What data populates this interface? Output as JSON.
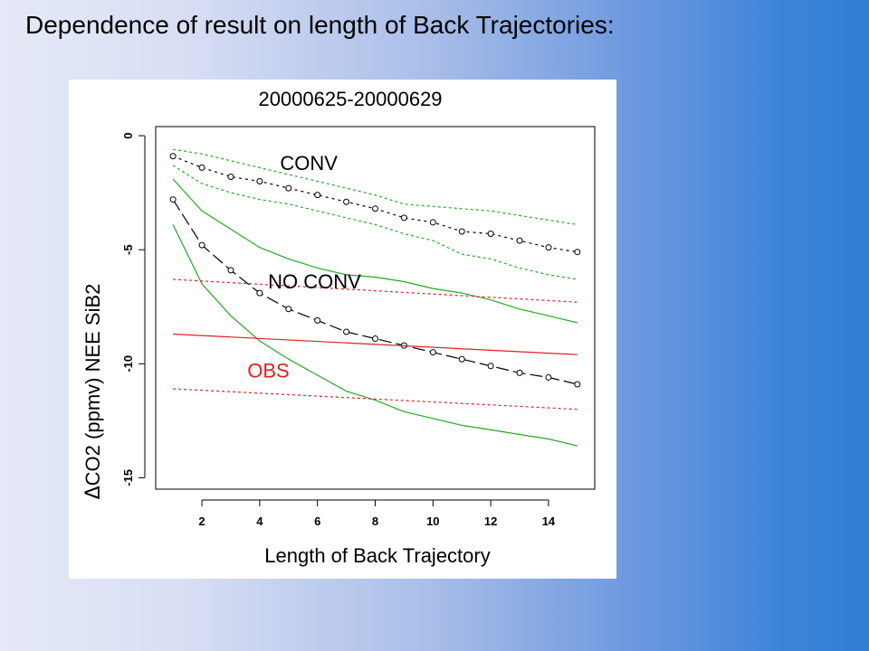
{
  "slide": {
    "title": "Dependence of result on length of Back Trajectories:"
  },
  "colors": {
    "conv": "#000000",
    "band": "#22aa22",
    "obs": "#dd2222"
  },
  "chart_data": {
    "type": "line",
    "title": "20000625-20000629",
    "xlabel": "Length of Back Trajectory",
    "ylabel_delta": "Δ",
    "ylabel": "CO2 (ppmv) NEE SiB2",
    "xlim": [
      0.4,
      15.6
    ],
    "ylim": [
      -15.5,
      0.4
    ],
    "x_ticks": [
      2,
      4,
      6,
      8,
      10,
      12,
      14
    ],
    "y_ticks": [
      0,
      -5,
      -10,
      -15
    ],
    "grid": false,
    "annotations": [
      {
        "text": "CONV",
        "x": 5.7,
        "y": -1.5,
        "color": "#000000"
      },
      {
        "text": "NO CONV",
        "x": 5.9,
        "y": -6.7,
        "color": "#000000"
      },
      {
        "text": "OBS",
        "x": 4.3,
        "y": -10.6,
        "color": "#dd2222"
      }
    ],
    "series": [
      {
        "id": "conv-mean",
        "style": "dotted-points",
        "color": "#000000",
        "x": [
          1,
          2,
          3,
          4,
          5,
          6,
          7,
          8,
          9,
          10,
          11,
          12,
          13,
          14,
          15
        ],
        "y": [
          -0.9,
          -1.4,
          -1.8,
          -2.0,
          -2.3,
          -2.6,
          -2.9,
          -3.2,
          -3.6,
          -3.8,
          -4.2,
          -4.3,
          -4.6,
          -4.9,
          -5.1
        ]
      },
      {
        "id": "conv-upper",
        "style": "dashed",
        "color": "#22aa22",
        "x": [
          1,
          2,
          3,
          4,
          5,
          6,
          7,
          8,
          9,
          10,
          11,
          12,
          13,
          14,
          15
        ],
        "y": [
          -0.6,
          -0.8,
          -1.1,
          -1.4,
          -1.7,
          -2.0,
          -2.3,
          -2.6,
          -3.0,
          -3.1,
          -3.2,
          -3.3,
          -3.5,
          -3.7,
          -3.9
        ]
      },
      {
        "id": "conv-lower",
        "style": "dashed",
        "color": "#22aa22",
        "x": [
          1,
          2,
          3,
          4,
          5,
          6,
          7,
          8,
          9,
          10,
          11,
          12,
          13,
          14,
          15
        ],
        "y": [
          -1.3,
          -2.1,
          -2.5,
          -2.8,
          -3.0,
          -3.3,
          -3.6,
          -3.9,
          -4.3,
          -4.6,
          -5.2,
          -5.4,
          -5.8,
          -6.1,
          -6.3
        ]
      },
      {
        "id": "noconv-mean",
        "style": "longdash-points",
        "color": "#000000",
        "x": [
          1,
          2,
          3,
          4,
          5,
          6,
          7,
          8,
          9,
          10,
          11,
          12,
          13,
          14,
          15
        ],
        "y": [
          -2.8,
          -4.8,
          -5.9,
          -6.9,
          -7.6,
          -8.1,
          -8.6,
          -8.9,
          -9.2,
          -9.5,
          -9.8,
          -10.1,
          -10.4,
          -10.6,
          -10.9
        ]
      },
      {
        "id": "noconv-upper",
        "style": "solid",
        "color": "#22aa22",
        "x": [
          1,
          2,
          3,
          4,
          5,
          6,
          7,
          8,
          9,
          10,
          11,
          12,
          13,
          14,
          15
        ],
        "y": [
          -1.9,
          -3.3,
          -4.1,
          -4.9,
          -5.4,
          -5.8,
          -6.1,
          -6.2,
          -6.4,
          -6.7,
          -6.9,
          -7.2,
          -7.6,
          -7.9,
          -8.2
        ]
      },
      {
        "id": "noconv-lower",
        "style": "solid",
        "color": "#22aa22",
        "x": [
          1,
          2,
          3,
          4,
          5,
          6,
          7,
          8,
          9,
          10,
          11,
          12,
          13,
          14,
          15
        ],
        "y": [
          -3.9,
          -6.5,
          -7.9,
          -9.0,
          -9.8,
          -10.5,
          -11.2,
          -11.6,
          -12.1,
          -12.4,
          -12.7,
          -12.9,
          -13.1,
          -13.3,
          -13.6
        ]
      },
      {
        "id": "obs-mean",
        "style": "solid",
        "color": "#dd2222",
        "x": [
          1,
          15
        ],
        "y": [
          -8.7,
          -9.6
        ]
      },
      {
        "id": "obs-upper",
        "style": "dashed",
        "color": "#dd2222",
        "x": [
          1,
          15
        ],
        "y": [
          -6.3,
          -7.3
        ]
      },
      {
        "id": "obs-lower",
        "style": "dashed",
        "color": "#dd2222",
        "x": [
          1,
          15
        ],
        "y": [
          -11.1,
          -12.0
        ]
      }
    ]
  }
}
